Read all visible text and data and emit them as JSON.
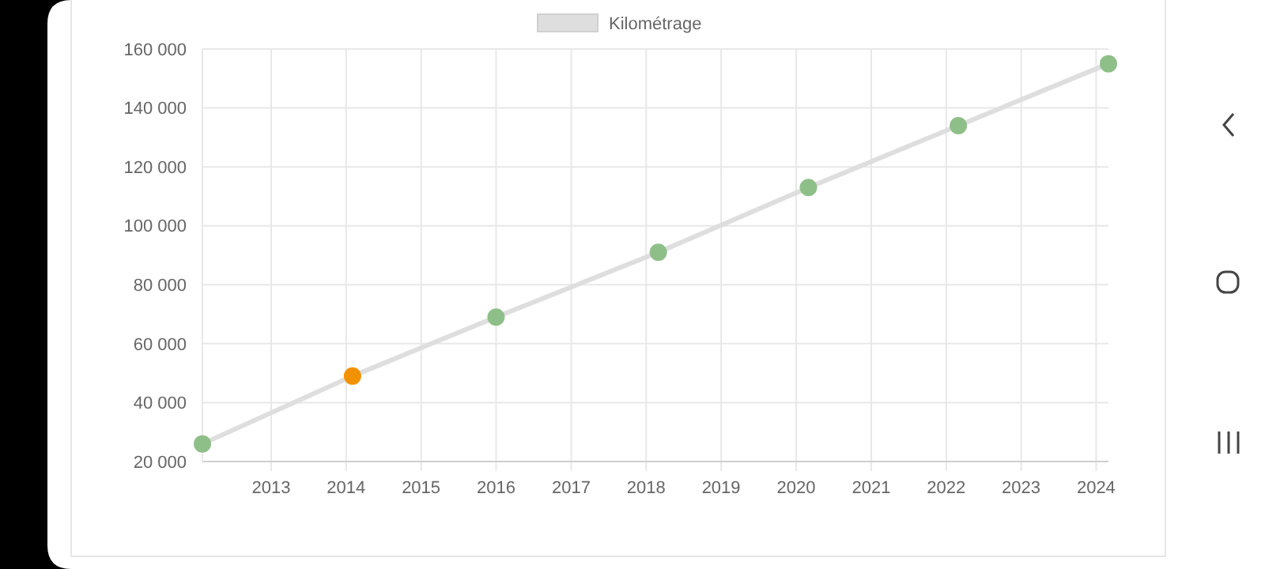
{
  "chart_data": {
    "type": "line",
    "x": [
      "2012-02",
      "2014-02",
      "2016-01",
      "2018-03",
      "2020-03",
      "2022-03",
      "2024-03"
    ],
    "series": [
      {
        "name": "Kilométrage",
        "color": "#dedede",
        "colors": [
          "#8fbf88",
          "#f39200",
          "#8fbf88",
          "#8fbf88",
          "#8fbf88",
          "#8fbf88",
          "#8fbf88"
        ],
        "values": [
          26000,
          49000,
          69000,
          91000,
          113000,
          134000,
          155000
        ]
      }
    ],
    "xlim": [
      "2012-02",
      "2024-03"
    ],
    "xticks": [
      "2013",
      "2014",
      "2015",
      "2016",
      "2017",
      "2018",
      "2019",
      "2020",
      "2021",
      "2022",
      "2023",
      "2024"
    ],
    "ylim": [
      20000,
      160000
    ],
    "yticks": [
      {
        "value": 20000,
        "label": "20 000"
      },
      {
        "value": 40000,
        "label": "40 000"
      },
      {
        "value": 60000,
        "label": "60 000"
      },
      {
        "value": 80000,
        "label": "80 000"
      },
      {
        "value": 100000,
        "label": "100 000"
      },
      {
        "value": 120000,
        "label": "120 000"
      },
      {
        "value": 140000,
        "label": "140 000"
      },
      {
        "value": 160000,
        "label": "160 000"
      }
    ],
    "grid": true,
    "legend": "top",
    "marker": "circle",
    "line_style": "solid"
  }
}
